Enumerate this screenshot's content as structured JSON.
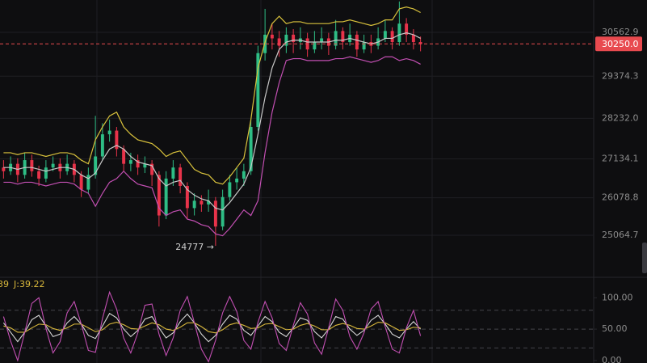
{
  "chart_data": [
    {
      "type": "candlestick",
      "xlim": [
        -0.5,
        83.5
      ],
      "ylim": [
        23990,
        31440
      ],
      "yticks": [
        30562.9,
        29374.3,
        {
          "value": 28232,
          "label": "28232.0"
        },
        27134.1,
        26078.8,
        25064.7
      ],
      "grid": true,
      "up_color": "#2ebd85",
      "down_color": "#e8334a",
      "open": [
        26900,
        26800,
        27000,
        26700,
        27100,
        26800,
        26600,
        26900,
        27000,
        26800,
        27000,
        26700,
        26300,
        26700,
        27200,
        27800,
        27900,
        27400,
        27000,
        27100,
        26900,
        27000,
        26700,
        25600,
        26600,
        26900,
        26400,
        25800,
        26000,
        25900,
        26000,
        25300,
        26100,
        26500,
        26600,
        26800,
        28000,
        30000,
        30500,
        30400,
        30200,
        30500,
        30300,
        30400,
        30100,
        30300,
        30400,
        30200,
        30600,
        30300,
        30500,
        30100,
        30300,
        30200,
        30400,
        30600,
        30300,
        30800,
        30500,
        30300
      ],
      "high": [
        27100,
        27200,
        27150,
        27300,
        27250,
        26950,
        27100,
        27200,
        27150,
        27250,
        27100,
        26800,
        26900,
        28300,
        28100,
        28200,
        28000,
        27500,
        27300,
        27250,
        27200,
        27100,
        26800,
        26800,
        27100,
        27000,
        26500,
        26200,
        26150,
        26300,
        26100,
        26300,
        26700,
        26900,
        27000,
        28200,
        30200,
        31200,
        30800,
        30600,
        30700,
        30650,
        30700,
        30550,
        30600,
        30700,
        30550,
        30900,
        30700,
        30800,
        30600,
        30500,
        30500,
        30700,
        30900,
        30700,
        31400,
        30950,
        30650,
        30450
      ],
      "low": [
        26600,
        26700,
        26500,
        26600,
        26650,
        26400,
        26500,
        26800,
        26600,
        26700,
        26500,
        26100,
        26200,
        26600,
        27100,
        27600,
        27200,
        26800,
        26800,
        26700,
        26750,
        26400,
        25300,
        25500,
        26400,
        26200,
        25500,
        25600,
        25700,
        25700,
        24777,
        25200,
        26000,
        26300,
        26400,
        26700,
        27900,
        29800,
        30100,
        29900,
        30000,
        30000,
        30100,
        29900,
        30000,
        30100,
        29950,
        30100,
        30100,
        30200,
        29900,
        30000,
        30000,
        30100,
        30300,
        30100,
        30200,
        30300,
        30100,
        30050
      ],
      "close": [
        26800,
        27000,
        26700,
        27100,
        26800,
        26600,
        26900,
        27000,
        26800,
        27000,
        26700,
        26300,
        26700,
        27200,
        27800,
        27900,
        27400,
        27000,
        27100,
        26900,
        27000,
        26700,
        25600,
        26600,
        26900,
        26400,
        25800,
        26000,
        25900,
        26000,
        25300,
        26100,
        26500,
        26600,
        26800,
        28000,
        30000,
        30500,
        30400,
        30200,
        30500,
        30300,
        30400,
        30100,
        30300,
        30400,
        30200,
        30600,
        30300,
        30500,
        30100,
        30300,
        30200,
        30400,
        30600,
        30300,
        30800,
        30500,
        30300,
        30250
      ],
      "overlays": [
        {
          "color": "#d9c23c",
          "values": [
            27300,
            27300,
            27250,
            27300,
            27300,
            27250,
            27200,
            27250,
            27300,
            27300,
            27250,
            27100,
            27000,
            27650,
            28000,
            28300,
            28400,
            28000,
            27800,
            27650,
            27600,
            27550,
            27400,
            27200,
            27300,
            27350,
            27100,
            26850,
            26750,
            26700,
            26500,
            26450,
            26650,
            26900,
            27150,
            28200,
            29600,
            30300,
            30800,
            31000,
            30800,
            30850,
            30850,
            30800,
            30800,
            30800,
            30800,
            30850,
            30850,
            30900,
            30850,
            30800,
            30750,
            30800,
            30900,
            30900,
            31200,
            31250,
            31200,
            31100
          ]
        },
        {
          "color": "#c8c8c8",
          "values": [
            26900,
            26900,
            26850,
            26900,
            26900,
            26850,
            26800,
            26850,
            26900,
            26900,
            26850,
            26700,
            26600,
            26750,
            27100,
            27400,
            27500,
            27400,
            27200,
            27050,
            27000,
            26950,
            26600,
            26400,
            26500,
            26550,
            26300,
            26150,
            26050,
            26000,
            25800,
            25750,
            25950,
            26200,
            26450,
            26900,
            27800,
            28800,
            29600,
            30100,
            30300,
            30350,
            30350,
            30300,
            30300,
            30300,
            30300,
            30350,
            30350,
            30400,
            30350,
            30300,
            30250,
            30300,
            30400,
            30400,
            30500,
            30550,
            30500,
            30400
          ]
        },
        {
          "color": "#c24fb2",
          "values": [
            26500,
            26500,
            26450,
            26500,
            26500,
            26450,
            26400,
            26450,
            26500,
            26500,
            26450,
            26300,
            26200,
            25850,
            26200,
            26500,
            26600,
            26800,
            26600,
            26450,
            26400,
            26350,
            25800,
            25600,
            25700,
            25750,
            25500,
            25450,
            25350,
            25300,
            25100,
            25050,
            25250,
            25500,
            25750,
            25600,
            26000,
            27300,
            28400,
            29200,
            29800,
            29850,
            29850,
            29800,
            29800,
            29800,
            29800,
            29850,
            29850,
            29900,
            29850,
            29800,
            29750,
            29800,
            29900,
            29900,
            29800,
            29850,
            29800,
            29700
          ]
        }
      ],
      "last_price": {
        "value": 30250,
        "label": "30250.0"
      },
      "annotation": "24777 →"
    },
    {
      "type": "line",
      "xlim": [
        -0.5,
        83.5
      ],
      "ylim": [
        -4,
        130
      ],
      "yticks": [
        {
          "value": 100,
          "label": "100.00"
        },
        {
          "value": 50,
          "label": "50.00"
        },
        {
          "value": 0,
          "label": "0.00"
        }
      ],
      "levels": [
        80,
        50,
        20
      ],
      "legend": [
        "39",
        "J:39.22"
      ],
      "series": [
        {
          "color": "#d8d8d8",
          "values": [
            60,
            45,
            30,
            45,
            65,
            72,
            55,
            38,
            42,
            60,
            70,
            58,
            40,
            35,
            55,
            75,
            68,
            50,
            38,
            48,
            66,
            70,
            52,
            36,
            44,
            62,
            74,
            60,
            42,
            30,
            40,
            58,
            72,
            66,
            48,
            40,
            55,
            70,
            62,
            45,
            38,
            52,
            68,
            64,
            46,
            36,
            50,
            70,
            66,
            50,
            40,
            48,
            64,
            72,
            58,
            42,
            36,
            50,
            62,
            50
          ]
        },
        {
          "color": "#d9b83c",
          "values": [
            55,
            52,
            45,
            45,
            52,
            58,
            57,
            51,
            48,
            52,
            58,
            58,
            52,
            46,
            49,
            58,
            61,
            57,
            51,
            50,
            55,
            60,
            57,
            50,
            48,
            53,
            60,
            60,
            54,
            46,
            44,
            49,
            57,
            60,
            56,
            51,
            52,
            58,
            59,
            54,
            49,
            50,
            56,
            59,
            55,
            49,
            49,
            56,
            59,
            56,
            51,
            50,
            55,
            61,
            60,
            54,
            48,
            49,
            53,
            52
          ]
        },
        {
          "color": "#c24fb2",
          "values": [
            70,
            31,
            0,
            45,
            91,
            100,
            51,
            12,
            30,
            76,
            94,
            58,
            16,
            13,
            67,
            109,
            82,
            36,
            12,
            44,
            88,
            90,
            42,
            8,
            36,
            80,
            102,
            60,
            18,
            -2,
            32,
            76,
            102,
            78,
            32,
            18,
            61,
            94,
            68,
            27,
            16,
            56,
            92,
            74,
            28,
            10,
            52,
            98,
            80,
            38,
            18,
            44,
            82,
            94,
            54,
            18,
            12,
            52,
            80,
            39.22
          ]
        }
      ]
    }
  ]
}
